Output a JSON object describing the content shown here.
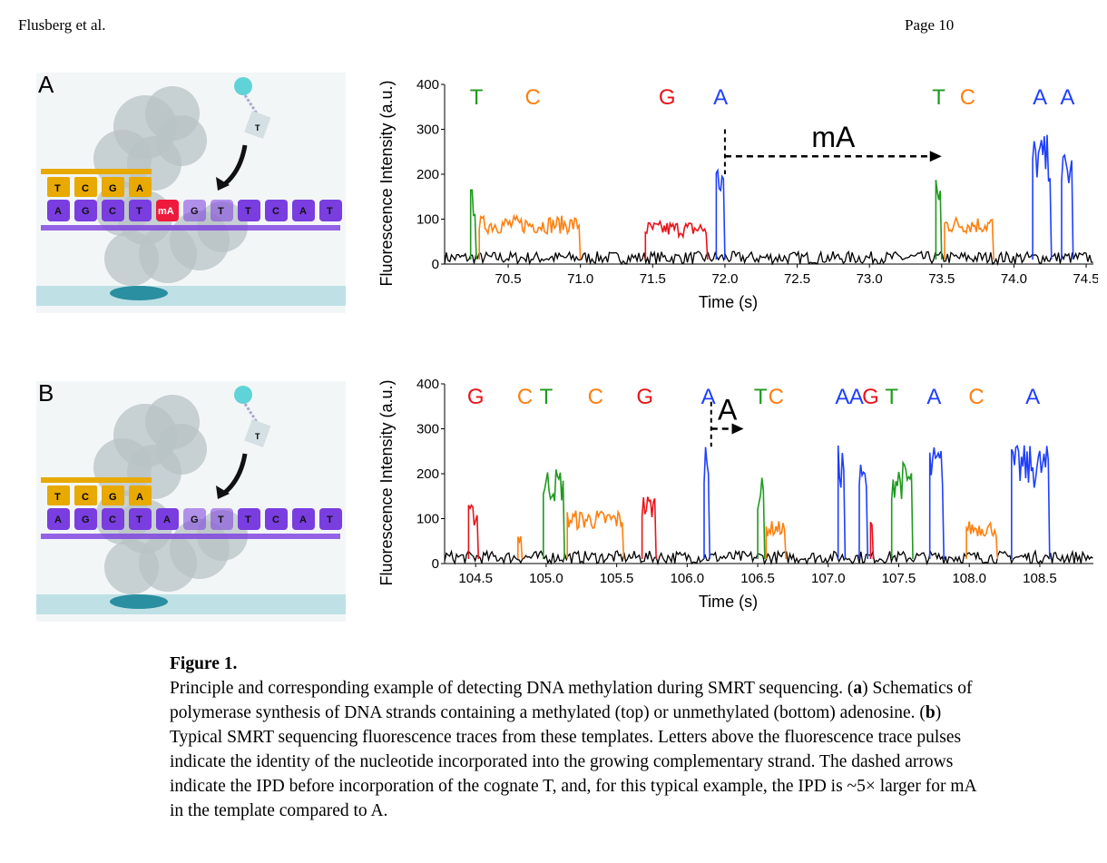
{
  "header": {
    "author": "Flusberg et al.",
    "page": "Page 10"
  },
  "schematics": [
    {
      "label": "A",
      "incoming": "T",
      "top_strand": [
        "T",
        "C",
        "G",
        "A"
      ],
      "bottom_strand": [
        "A",
        "G",
        "C",
        "T",
        "mA",
        "G",
        "T",
        "T",
        "C",
        "A",
        "T"
      ],
      "colors": {
        "top": "#e8a900",
        "bottom": "#7a3de0",
        "methyl": "#ee1a3c",
        "dye": "#5fd3d8",
        "surface": "#bfe1e6"
      }
    },
    {
      "label": "B",
      "incoming": "T",
      "top_strand": [
        "T",
        "C",
        "G",
        "A"
      ],
      "bottom_strand": [
        "A",
        "G",
        "C",
        "T",
        "A",
        "G",
        "T",
        "T",
        "C",
        "A",
        "T"
      ],
      "colors": {
        "top": "#e8a900",
        "bottom": "#7a3de0",
        "methyl": "#7a3de0",
        "dye": "#5fd3d8",
        "surface": "#bfe1e6"
      }
    }
  ],
  "chart_data": [
    {
      "type": "line",
      "xlabel": "Time (s)",
      "ylabel": "Fluorescence Intensity (a.u.)",
      "xlim": [
        70.06,
        74.55
      ],
      "ylim": [
        0,
        400
      ],
      "xticks": [
        "70.5",
        "71.0",
        "71.5",
        "72.0",
        "72.5",
        "73.0",
        "73.5",
        "74.0",
        "74.5"
      ],
      "yticks": [
        "0",
        "100",
        "200",
        "300",
        "400"
      ],
      "base_colors": {
        "T": "#1f9a1f",
        "C": "#ff7f0e",
        "G": "#e8141a",
        "A": "#1f3fff"
      },
      "pulses": [
        {
          "base": "T",
          "start": 70.24,
          "end": 70.28,
          "height": 140
        },
        {
          "base": "C",
          "start": 70.3,
          "end": 71.0,
          "height": 90
        },
        {
          "base": "G",
          "start": 71.45,
          "end": 71.88,
          "height": 80
        },
        {
          "base": "A",
          "start": 71.94,
          "end": 72.0,
          "height": 190
        },
        {
          "base": "T",
          "start": 73.46,
          "end": 73.5,
          "height": 160
        },
        {
          "base": "C",
          "start": 73.52,
          "end": 73.86,
          "height": 90
        },
        {
          "base": "A",
          "start": 74.13,
          "end": 74.26,
          "height": 240
        },
        {
          "base": "A",
          "start": 74.33,
          "end": 74.41,
          "height": 210
        }
      ],
      "letters": [
        {
          "text": "T",
          "x": 70.28
        },
        {
          "text": "C",
          "x": 70.67
        },
        {
          "text": "G",
          "x": 71.6
        },
        {
          "text": "A",
          "x": 71.97
        },
        {
          "text": "T",
          "x": 73.48
        },
        {
          "text": "C",
          "x": 73.68
        },
        {
          "text": "A",
          "x": 74.18
        },
        {
          "text": "A",
          "x": 74.37
        }
      ],
      "ipd": {
        "label": "mA",
        "from": 72.0,
        "to": 73.5,
        "y": 240
      }
    },
    {
      "type": "line",
      "xlabel": "Time (s)",
      "ylabel": "Fluorescence Intensity (a.u.)",
      "xlim": [
        104.28,
        108.88
      ],
      "ylim": [
        0,
        400
      ],
      "xticks": [
        "104.5",
        "105.0",
        "105.5",
        "106.0",
        "106.5",
        "107.0",
        "107.5",
        "108.0",
        "108.5"
      ],
      "yticks": [
        "0",
        "100",
        "200",
        "300",
        "400"
      ],
      "base_colors": {
        "T": "#1f9a1f",
        "C": "#ff7f0e",
        "G": "#e8141a",
        "A": "#1f3fff"
      },
      "pulses": [
        {
          "base": "G",
          "start": 104.45,
          "end": 104.52,
          "height": 110
        },
        {
          "base": "C",
          "start": 104.8,
          "end": 104.83,
          "height": 60
        },
        {
          "base": "T",
          "start": 104.98,
          "end": 105.13,
          "height": 180
        },
        {
          "base": "C",
          "start": 105.15,
          "end": 105.55,
          "height": 100
        },
        {
          "base": "G",
          "start": 105.68,
          "end": 105.78,
          "height": 130
        },
        {
          "base": "A",
          "start": 106.12,
          "end": 106.16,
          "height": 240
        },
        {
          "base": "T",
          "start": 106.5,
          "end": 106.55,
          "height": 160
        },
        {
          "base": "C",
          "start": 106.56,
          "end": 106.7,
          "height": 80
        },
        {
          "base": "A",
          "start": 107.07,
          "end": 107.12,
          "height": 220
        },
        {
          "base": "A",
          "start": 107.22,
          "end": 107.28,
          "height": 190
        },
        {
          "base": "G",
          "start": 107.3,
          "end": 107.32,
          "height": 80
        },
        {
          "base": "T",
          "start": 107.45,
          "end": 107.6,
          "height": 190
        },
        {
          "base": "A",
          "start": 107.72,
          "end": 107.82,
          "height": 220
        },
        {
          "base": "C",
          "start": 107.98,
          "end": 108.2,
          "height": 80
        },
        {
          "base": "A",
          "start": 108.3,
          "end": 108.57,
          "height": 220
        }
      ],
      "letters": [
        {
          "text": "G",
          "x": 104.5
        },
        {
          "text": "C",
          "x": 104.85
        },
        {
          "text": "T",
          "x": 105.0
        },
        {
          "text": "C",
          "x": 105.35
        },
        {
          "text": "G",
          "x": 105.7
        },
        {
          "text": "A",
          "x": 106.15
        },
        {
          "text": "T",
          "x": 106.52
        },
        {
          "text": "C",
          "x": 106.63
        },
        {
          "text": "A",
          "x": 107.1
        },
        {
          "text": "A",
          "x": 107.2
        },
        {
          "text": "G",
          "x": 107.3
        },
        {
          "text": "T",
          "x": 107.45
        },
        {
          "text": "A",
          "x": 107.75
        },
        {
          "text": "C",
          "x": 108.05
        },
        {
          "text": "A",
          "x": 108.45
        }
      ],
      "ipd": {
        "label": "A",
        "from": 106.17,
        "to": 106.4,
        "y": 300
      }
    }
  ],
  "caption": {
    "title": "Figure 1.",
    "p1": "Principle and corresponding example of detecting DNA methylation during SMRT sequencing. (",
    "a": "a",
    "p2": ") Schematics of polymerase synthesis of DNA strands containing a methylated (top) or unmethylated (bottom) adenosine. (",
    "b": "b",
    "p3": ") Typical SMRT sequencing fluorescence traces from these templates. Letters above the fluorescence trace pulses indicate the identity of the nucleotide incorporated into the growing complementary strand. The dashed arrows indicate the IPD before incorporation of the cognate T, and, for this typical example, the IPD is ~5× larger for mA in the template compared to A."
  }
}
